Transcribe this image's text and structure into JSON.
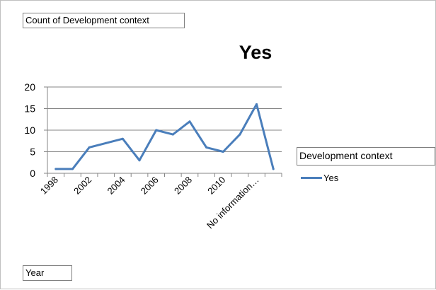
{
  "pivot": {
    "filter_field": "Count of Development context",
    "axis_field": "Year"
  },
  "legend": {
    "title": "Development context",
    "item": "Yes"
  },
  "colors": {
    "series": "#4a7ebb",
    "gridline": "#868686"
  },
  "chart_data": {
    "type": "line",
    "title": "Yes",
    "xlabel": "",
    "ylabel": "",
    "ylim": [
      0,
      20
    ],
    "yticks": [
      0,
      5,
      10,
      15,
      20
    ],
    "grid": true,
    "legend_position": "right",
    "categories": [
      "1998",
      "",
      "2002",
      "",
      "2004",
      "",
      "2006",
      "",
      "2008",
      "",
      "2010",
      "",
      "No information…",
      ""
    ],
    "tick_labels": [
      "1998",
      "2002",
      "2004",
      "2006",
      "2008",
      "2010",
      "No information…"
    ],
    "series": [
      {
        "name": "Yes",
        "values": [
          1,
          1,
          6,
          7,
          8,
          3,
          10,
          9,
          12,
          6,
          5,
          9,
          16,
          1
        ]
      }
    ]
  }
}
